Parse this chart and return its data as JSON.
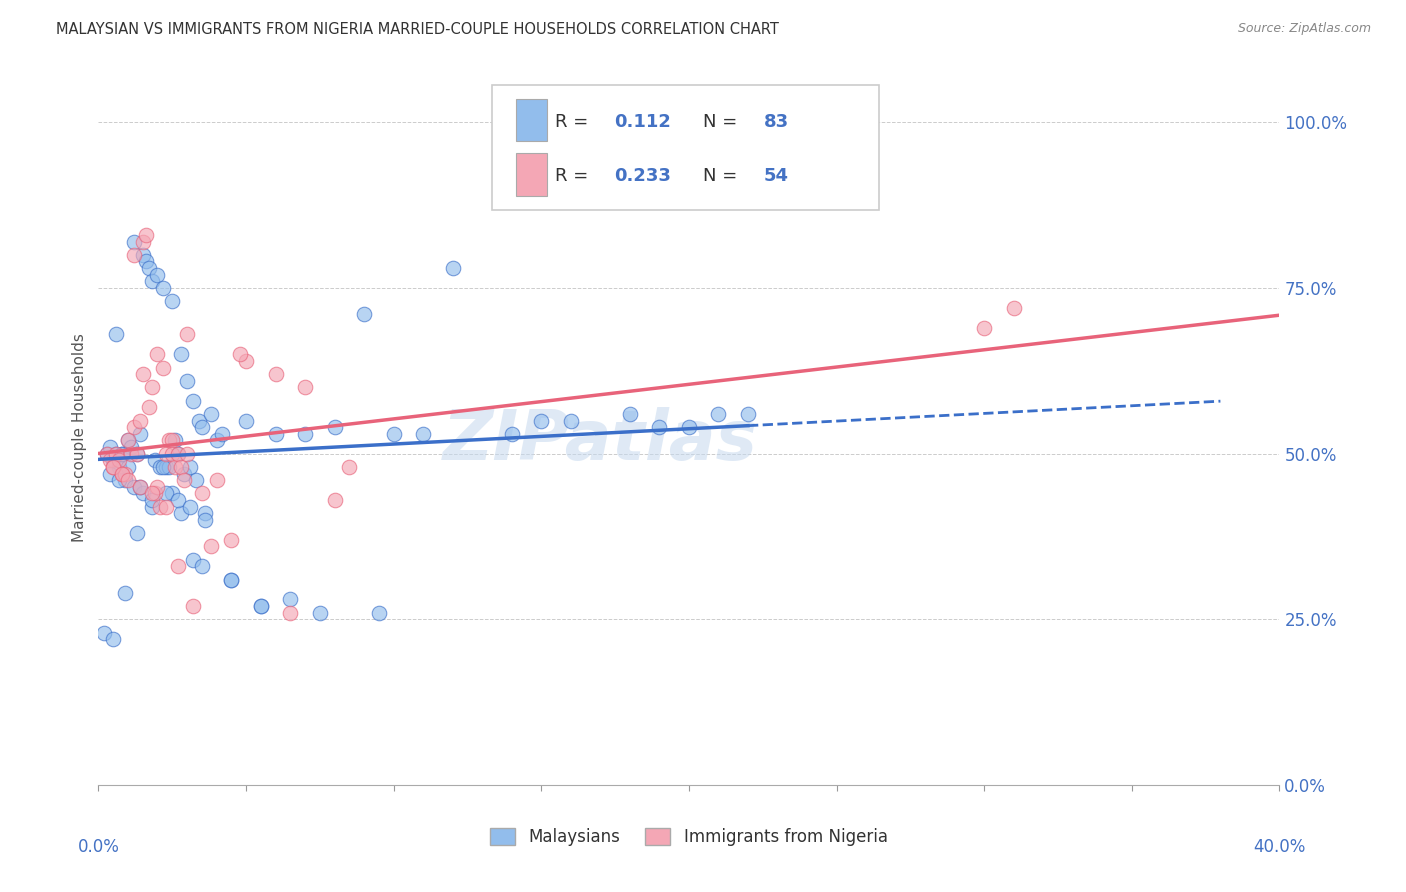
{
  "title": "MALAYSIAN VS IMMIGRANTS FROM NIGERIA MARRIED-COUPLE HOUSEHOLDS CORRELATION CHART",
  "source": "Source: ZipAtlas.com",
  "ylabel": "Married-couple Households",
  "ytick_values": [
    0,
    25,
    50,
    75,
    100
  ],
  "xlim": [
    0,
    40
  ],
  "ylim": [
    0,
    105
  ],
  "legend_label1": "Malaysians",
  "legend_label2": "Immigrants from Nigeria",
  "R1": 0.112,
  "N1": 83,
  "R2": 0.233,
  "N2": 54,
  "color_blue": "#92BDEC",
  "color_pink": "#F4A7B5",
  "color_blue_line": "#3B6FC9",
  "color_pink_line": "#E8637A",
  "color_axis_labels": "#4472C4",
  "color_grid": "#CCCCCC",
  "watermark": "ZIPatlas",
  "blue_x": [
    0.3,
    0.4,
    0.5,
    0.6,
    0.7,
    0.8,
    0.9,
    1.0,
    1.1,
    1.2,
    1.3,
    1.4,
    1.5,
    1.6,
    1.7,
    1.8,
    1.9,
    2.0,
    2.1,
    2.2,
    2.3,
    2.4,
    2.5,
    2.6,
    2.7,
    2.8,
    2.9,
    3.0,
    3.1,
    3.2,
    3.3,
    3.4,
    3.5,
    3.6,
    3.8,
    4.0,
    4.2,
    4.5,
    5.0,
    5.5,
    6.0,
    6.5,
    7.0,
    8.0,
    9.0,
    10.0,
    12.0,
    14.0,
    16.0,
    18.0,
    20.0,
    22.0,
    0.2,
    0.5,
    0.8,
    1.2,
    1.5,
    1.8,
    2.2,
    2.5,
    2.8,
    3.2,
    3.5,
    0.4,
    0.7,
    1.0,
    1.4,
    1.8,
    2.3,
    2.7,
    3.1,
    3.6,
    4.5,
    5.5,
    7.5,
    9.5,
    11.0,
    15.0,
    19.0,
    21.0,
    0.6,
    0.9,
    1.3
  ],
  "blue_y": [
    50,
    51,
    49,
    50,
    48,
    50,
    46,
    52,
    51,
    82,
    50,
    53,
    80,
    79,
    78,
    76,
    49,
    77,
    48,
    75,
    48,
    48,
    73,
    52,
    50,
    65,
    47,
    61,
    48,
    58,
    46,
    55,
    54,
    41,
    56,
    52,
    53,
    31,
    55,
    27,
    53,
    28,
    53,
    54,
    71,
    53,
    78,
    53,
    55,
    56,
    54,
    56,
    23,
    22,
    50,
    45,
    44,
    42,
    48,
    44,
    41,
    34,
    33,
    47,
    46,
    48,
    45,
    43,
    44,
    43,
    42,
    40,
    31,
    27,
    26,
    26,
    53,
    55,
    54,
    56,
    68,
    29,
    38
  ],
  "pink_x": [
    0.3,
    0.4,
    0.5,
    0.6,
    0.7,
    0.8,
    0.9,
    1.0,
    1.1,
    1.2,
    1.3,
    1.4,
    1.5,
    1.6,
    1.7,
    1.8,
    1.9,
    2.0,
    2.1,
    2.2,
    2.3,
    2.4,
    2.5,
    2.6,
    2.7,
    2.8,
    2.9,
    3.0,
    3.5,
    4.0,
    4.5,
    5.0,
    6.0,
    7.0,
    8.0,
    30.0,
    1.2,
    1.5,
    2.0,
    2.5,
    3.0,
    3.8,
    0.5,
    0.8,
    1.0,
    1.4,
    1.8,
    2.3,
    2.7,
    3.2,
    4.8,
    6.5,
    8.5,
    31.0
  ],
  "pink_y": [
    50,
    49,
    48,
    50,
    49,
    47,
    47,
    52,
    50,
    54,
    50,
    55,
    82,
    83,
    57,
    60,
    44,
    65,
    42,
    63,
    50,
    52,
    50,
    48,
    50,
    48,
    46,
    68,
    44,
    46,
    37,
    64,
    62,
    60,
    43,
    69,
    80,
    62,
    45,
    52,
    50,
    36,
    48,
    47,
    46,
    45,
    44,
    42,
    33,
    27,
    65,
    26,
    48,
    72
  ]
}
